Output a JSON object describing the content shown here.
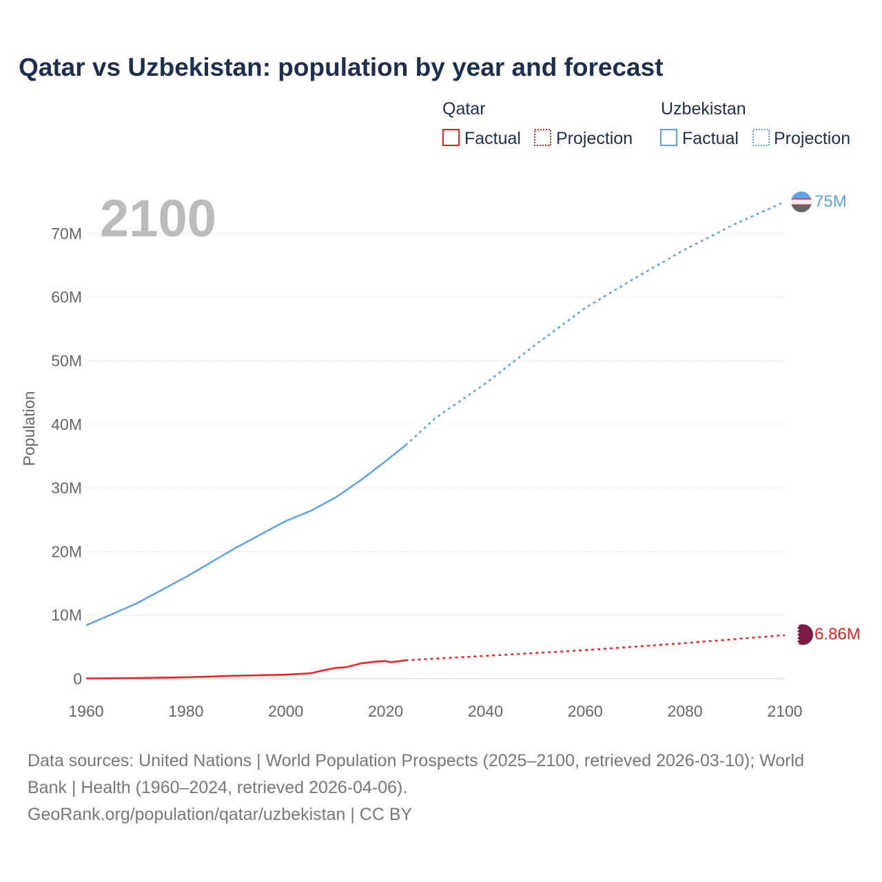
{
  "chart_data": {
    "type": "line",
    "title": "Qatar vs Uzbekistan: population by year and forecast",
    "ylabel": "Population",
    "xlabel": "",
    "xlim": [
      1960,
      2100
    ],
    "ylim": [
      0,
      75000000
    ],
    "x_ticks": [
      "1960",
      "1980",
      "2000",
      "2020",
      "2040",
      "2060",
      "2080",
      "2100"
    ],
    "y_ticks": [
      {
        "v": 0,
        "label": "0"
      },
      {
        "v": 10000000,
        "label": "10M"
      },
      {
        "v": 20000000,
        "label": "20M"
      },
      {
        "v": 30000000,
        "label": "30M"
      },
      {
        "v": 40000000,
        "label": "40M"
      },
      {
        "v": 50000000,
        "label": "50M"
      },
      {
        "v": 60000000,
        "label": "60M"
      },
      {
        "v": 70000000,
        "label": "70M"
      }
    ],
    "year_label": "2100",
    "legend": {
      "groups": [
        {
          "name": "Qatar",
          "items": [
            "Factual",
            "Projection"
          ]
        },
        {
          "name": "Uzbekistan",
          "items": [
            "Factual",
            "Projection"
          ]
        }
      ]
    },
    "series": [
      {
        "name": "Uzbekistan",
        "color": "#5ba3e8",
        "factual": {
          "x": [
            1960,
            1970,
            1980,
            1990,
            2000,
            2005,
            2010,
            2015,
            2020,
            2024
          ],
          "y": [
            8.4,
            11.8,
            16.0,
            20.6,
            24.8,
            26.4,
            28.5,
            31.2,
            34.2,
            36.7
          ]
        },
        "projection": {
          "x": [
            2024,
            2030,
            2040,
            2050,
            2060,
            2070,
            2080,
            2090,
            2100
          ],
          "y": [
            36.7,
            41.0,
            46.4,
            52.5,
            58.3,
            63.0,
            67.5,
            71.5,
            75.0
          ]
        },
        "end_label": "75M",
        "flag": "uzbekistan-flag"
      },
      {
        "name": "Qatar",
        "color": "#ff1a1a",
        "factual": {
          "x": [
            1960,
            1970,
            1980,
            1990,
            2000,
            2005,
            2008,
            2010,
            2012,
            2015,
            2018,
            2020,
            2021,
            2022,
            2024
          ],
          "y": [
            0.05,
            0.11,
            0.23,
            0.48,
            0.64,
            0.87,
            1.4,
            1.7,
            1.8,
            2.4,
            2.7,
            2.8,
            2.6,
            2.7,
            2.9
          ]
        },
        "projection": {
          "x": [
            2024,
            2040,
            2060,
            2080,
            2100
          ],
          "y": [
            2.9,
            3.6,
            4.5,
            5.6,
            6.86
          ]
        },
        "end_label": "6.86M",
        "flag": "qatar-flag"
      }
    ],
    "y_units": "millions"
  },
  "footer": {
    "line1": "Data sources: United Nations | World Population Prospects (2025–2100, retrieved 2026-03-10); World",
    "line2": "Bank | Health (1960–2024, retrieved 2026-04-06).",
    "line3": "GeoRank.org/population/qatar/uzbekistan | CC BY"
  }
}
